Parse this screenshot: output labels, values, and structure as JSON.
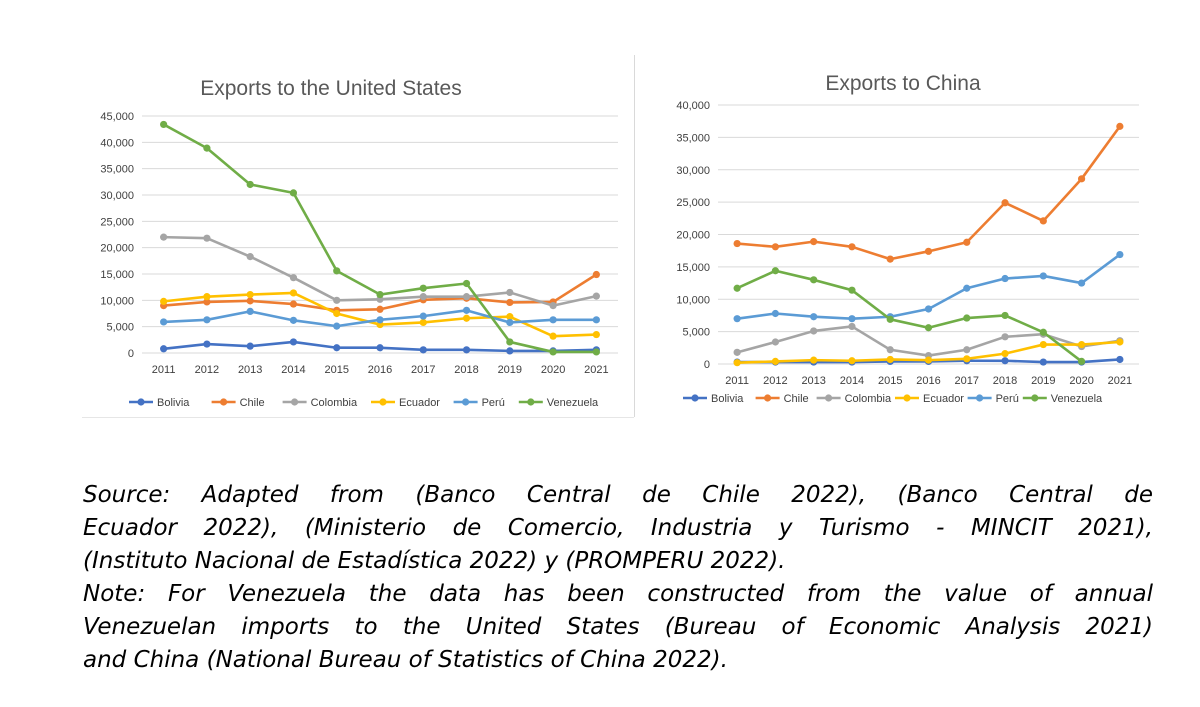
{
  "chart_data": [
    {
      "type": "line",
      "title": "Exports to the United States",
      "xlabel": "",
      "ylabel": "",
      "x": [
        "2011",
        "2012",
        "2013",
        "2014",
        "2015",
        "2016",
        "2017",
        "2018",
        "2019",
        "2020",
        "2021"
      ],
      "ylim": [
        0,
        45000
      ],
      "yticks": [
        "0",
        "5,000",
        "10,000",
        "15,000",
        "20,000",
        "25,000",
        "30,000",
        "35,000",
        "40,000",
        "45,000"
      ],
      "grid": true,
      "legend_position": "bottom",
      "series": [
        {
          "name": "Bolivia",
          "color": "#4472C4",
          "values": [
            800,
            1700,
            1300,
            2100,
            1000,
            1000,
            600,
            600,
            400,
            400,
            600
          ]
        },
        {
          "name": "Chile",
          "color": "#ED7D31",
          "values": [
            9000,
            9700,
            9900,
            9300,
            8100,
            8300,
            10100,
            10400,
            9600,
            9700,
            14900
          ]
        },
        {
          "name": "Colombia",
          "color": "#A5A5A5",
          "values": [
            22000,
            21800,
            18300,
            14300,
            10000,
            10200,
            10700,
            10700,
            11500,
            9000,
            10800
          ]
        },
        {
          "name": "Ecuador",
          "color": "#FFC000",
          "values": [
            9800,
            10700,
            11100,
            11400,
            7500,
            5400,
            5800,
            6600,
            6900,
            3200,
            3500
          ]
        },
        {
          "name": "Perú",
          "color": "#5B9BD5",
          "values": [
            5900,
            6300,
            7900,
            6200,
            5100,
            6300,
            7000,
            8100,
            5800,
            6300,
            6300
          ]
        },
        {
          "name": "Venezuela",
          "color": "#70AD47",
          "values": [
            43400,
            38900,
            32000,
            30400,
            15600,
            11100,
            12300,
            13200,
            2100,
            200,
            200
          ]
        }
      ]
    },
    {
      "type": "line",
      "title": "Exports to China",
      "xlabel": "",
      "ylabel": "",
      "x": [
        "2011",
        "2012",
        "2013",
        "2014",
        "2015",
        "2016",
        "2017",
        "2018",
        "2019",
        "2020",
        "2021"
      ],
      "ylim": [
        0,
        40000
      ],
      "yticks": [
        "0",
        "5,000",
        "10,000",
        "15,000",
        "20,000",
        "25,000",
        "30,000",
        "35,000",
        "40,000"
      ],
      "grid": true,
      "legend_position": "bottom",
      "series": [
        {
          "name": "Bolivia",
          "color": "#4472C4",
          "values": [
            300,
            300,
            300,
            300,
            400,
            400,
            500,
            500,
            300,
            300,
            700
          ]
        },
        {
          "name": "Chile",
          "color": "#ED7D31",
          "values": [
            18600,
            18100,
            18900,
            18100,
            16200,
            17400,
            18800,
            24900,
            22100,
            28600,
            36700
          ]
        },
        {
          "name": "Colombia",
          "color": "#A5A5A5",
          "values": [
            1800,
            3400,
            5100,
            5800,
            2200,
            1300,
            2200,
            4200,
            4600,
            2700,
            3600
          ]
        },
        {
          "name": "Ecuador",
          "color": "#FFC000",
          "values": [
            200,
            400,
            600,
            500,
            700,
            600,
            800,
            1600,
            3000,
            3000,
            3400
          ]
        },
        {
          "name": "Perú",
          "color": "#5B9BD5",
          "values": [
            7000,
            7800,
            7300,
            7000,
            7300,
            8500,
            11700,
            13200,
            13600,
            12500,
            16900
          ]
        },
        {
          "name": "Venezuela",
          "color": "#70AD47",
          "values": [
            11700,
            14400,
            13000,
            11400,
            6900,
            5600,
            7100,
            7500,
            4900,
            400,
            null
          ]
        }
      ]
    }
  ],
  "caption": {
    "source_line1": "Source: Adapted from (Banco Central de Chile 2022), (Banco Central de",
    "source_line2": "Ecuador 2022), (Ministerio de Comercio, Industria y Turismo - MINCIT 2021),",
    "source_line3": "(Instituto Nacional de Estadística 2022) y (PROMPERU 2022).",
    "note_line1": "Note: For Venezuela the data has been constructed from the value of annual",
    "note_line2": "Venezuelan imports to the United States (Bureau of Economic Analysis 2021)",
    "note_line3": "and China (National Bureau of Statistics of China 2022)."
  }
}
